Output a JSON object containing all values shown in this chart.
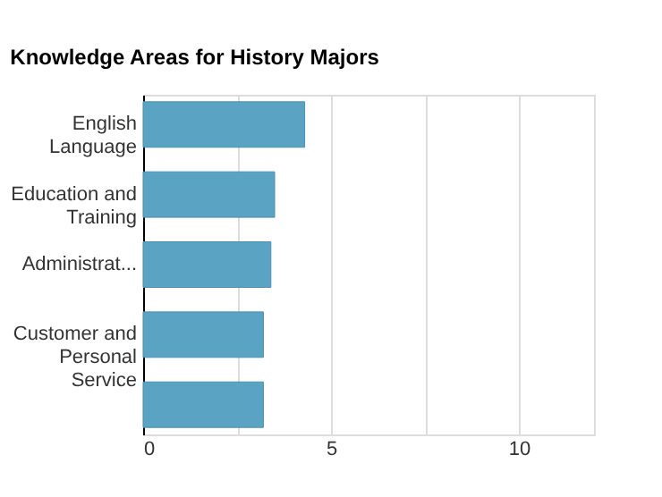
{
  "chart_data": {
    "type": "bar",
    "orientation": "horizontal",
    "title": "Knowledge Areas for History Majors",
    "categories": [
      "English Language",
      "Education and Training",
      "Administrat...",
      "Customer and Personal Service",
      null
    ],
    "values": [
      4.3,
      3.5,
      3.4,
      3.2,
      3.2
    ],
    "color": "#5ba3c3",
    "xlim": [
      0,
      12
    ],
    "xticks": [
      0,
      {
        "value": 2.5,
        "label": null
      },
      5,
      {
        "value": 7.5,
        "label": null
      },
      10
    ],
    "grid": "x"
  }
}
